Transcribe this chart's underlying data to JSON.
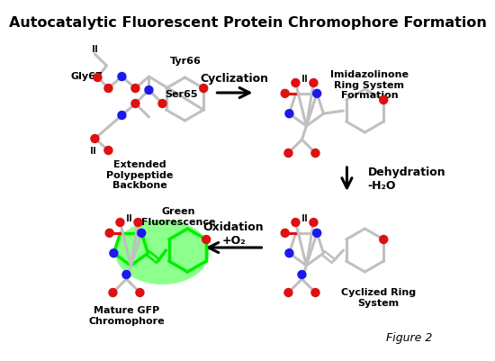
{
  "title": "Autocatalytic Fluorescent Protein Chromophore Formation",
  "title_fontsize": 11.5,
  "title_fontweight": "bold",
  "background_color": "#ffffff",
  "figure2_label": "Figure 2",
  "labels": {
    "gly67": "Gly67",
    "tyr66": "Tyr66",
    "ser65": "Ser65",
    "extended": "Extended\nPolypeptide\nBackbone",
    "imidazolinone": "Imidazolinone\nRing System\nFormation",
    "dehydration": "Dehydration\n-H₂O",
    "oxidation": "Oxidation\n+O₂",
    "green_fluorescence": "Green\nFluorescence",
    "mature_gfp": "Mature GFP\nChromophore",
    "cyclization": "Cyclization",
    "cyclized_ring": "Cyclized Ring\nSystem"
  },
  "bc": "#c0c0c0",
  "nc": "#1a1aee",
  "oc": "#dd1111",
  "gc": "#00ee00",
  "tc": "#000000"
}
